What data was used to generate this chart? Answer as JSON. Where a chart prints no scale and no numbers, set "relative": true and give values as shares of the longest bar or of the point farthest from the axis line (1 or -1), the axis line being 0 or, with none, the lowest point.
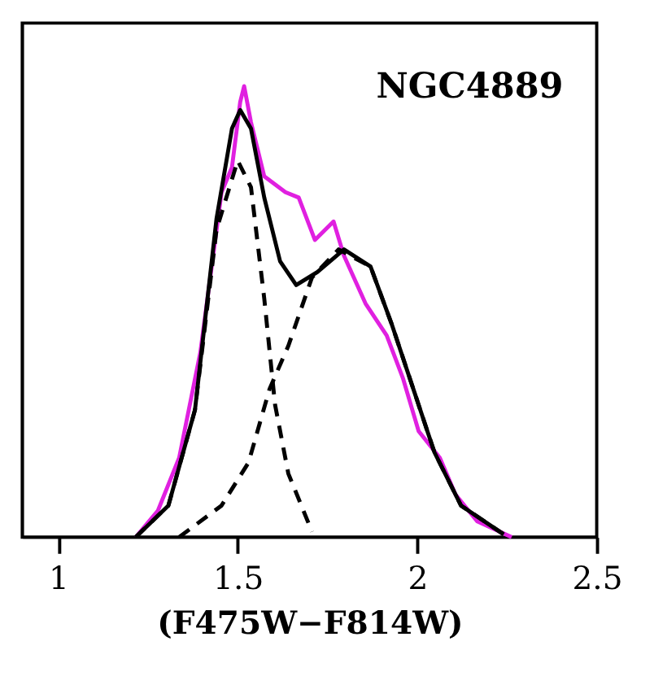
{
  "chart_data": {
    "type": "line",
    "relative": true,
    "xlabel": "(F475W−F814W)",
    "xlim": [
      0.9,
      2.5
    ],
    "xticks": [
      1,
      1.5,
      2,
      2.5
    ],
    "grid": false,
    "annotations": [
      "NGC4889"
    ],
    "series": [
      {
        "color": "#e020e0",
        "line_style": "solid",
        "x": [
          1.216,
          1.278,
          1.337,
          1.396,
          1.455,
          1.484,
          1.507,
          1.518,
          1.537,
          1.574,
          1.633,
          1.67,
          1.715,
          1.767,
          1.796,
          1.856,
          1.915,
          1.96,
          2.004,
          2.063,
          2.107,
          2.167,
          2.263
        ],
        "values": [
          0,
          0.059,
          0.176,
          0.41,
          0.765,
          0.82,
          0.965,
          1.0,
          0.92,
          0.8,
          0.765,
          0.753,
          0.659,
          0.7,
          0.624,
          0.518,
          0.447,
          0.353,
          0.235,
          0.176,
          0.094,
          0.035,
          0
        ]
      },
      {
        "color": "#000000",
        "line_style": "solid",
        "x": [
          1.216,
          1.307,
          1.381,
          1.441,
          1.484,
          1.507,
          1.537,
          1.574,
          1.618,
          1.663,
          1.722,
          1.796,
          1.87,
          1.93,
          1.989,
          2.048,
          2.122,
          2.241
        ],
        "values": [
          0,
          0.07,
          0.282,
          0.706,
          0.906,
          0.947,
          0.906,
          0.753,
          0.612,
          0.559,
          0.588,
          0.638,
          0.6,
          0.47,
          0.329,
          0.188,
          0.07,
          0.006
        ]
      },
      {
        "color": "#000000",
        "line_style": "dashed",
        "x": [
          1.216,
          1.307,
          1.381,
          1.441,
          1.5,
          1.537,
          1.574,
          1.604,
          1.641,
          1.707
        ],
        "values": [
          0,
          0.07,
          0.282,
          0.682,
          0.835,
          0.776,
          0.529,
          0.294,
          0.141,
          0.012
        ]
      },
      {
        "color": "#000000",
        "line_style": "dashed",
        "x": [
          1.337,
          1.455,
          1.53,
          1.589,
          1.641,
          1.707,
          1.781,
          1.87,
          1.93,
          1.989,
          2.048,
          2.122,
          2.241
        ],
        "values": [
          0,
          0.07,
          0.165,
          0.329,
          0.424,
          0.576,
          0.638,
          0.6,
          0.47,
          0.329,
          0.188,
          0.07,
          0.006
        ]
      }
    ]
  }
}
